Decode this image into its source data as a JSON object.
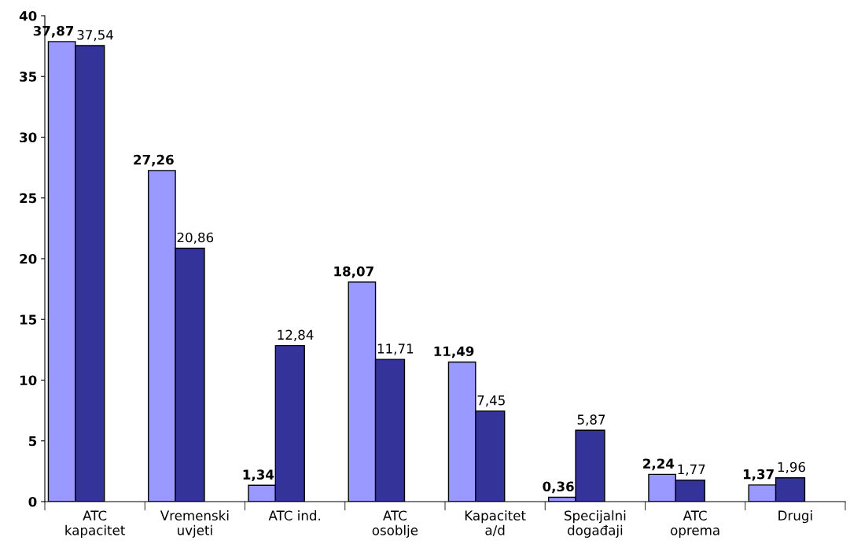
{
  "chart_data": {
    "type": "bar",
    "categories": [
      "ATC\nkapacitet",
      "Vremenski\nuvjeti",
      "ATC ind.",
      "ATC\nosoblje",
      "Kapacitet\na/d",
      "Specijalni\ndogađaji",
      "ATC\noprema",
      "Drugi"
    ],
    "series": [
      {
        "color": "#9999ff",
        "values": [
          37.87,
          27.26,
          1.34,
          18.07,
          11.49,
          0.36,
          2.24,
          1.37
        ],
        "value_labels": [
          "37,87",
          "27,26",
          "1,34",
          "18,07",
          "11,49",
          "0,36",
          "2,24",
          "1,37"
        ]
      },
      {
        "color": "#333399",
        "values": [
          37.54,
          20.86,
          12.84,
          11.71,
          7.45,
          5.87,
          1.77,
          1.96
        ],
        "value_labels": [
          "37,54",
          "20,86",
          "12,84",
          "11,71",
          "7,45",
          "5,87",
          "1,77",
          "1,96"
        ]
      }
    ],
    "ylim": [
      0,
      40
    ],
    "yticks": [
      0,
      5,
      10,
      15,
      20,
      25,
      30,
      35,
      40
    ],
    "grid": false,
    "legend": false
  }
}
